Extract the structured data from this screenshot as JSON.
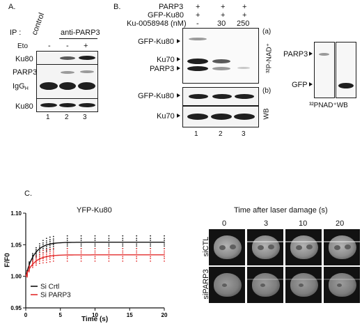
{
  "panelA": {
    "label": "A.",
    "ip_label": "IP :",
    "control_label": "control",
    "anti_label": "anti-PARP3",
    "eto_label": "Eto",
    "eto_signs": [
      "-",
      "-",
      "+"
    ],
    "bands": [
      "Ku80",
      "PARP3",
      "IgG",
      "H",
      "Ku80"
    ],
    "lanes": [
      "1",
      "2",
      "3"
    ]
  },
  "panelB": {
    "label": "B.",
    "rows": [
      {
        "name": "PARP3",
        "values": [
          "+",
          "+",
          "+"
        ]
      },
      {
        "name": "GFP-Ku80",
        "values": [
          "+",
          "+",
          "+"
        ]
      },
      {
        "name": "Ku-0058948 (nM)",
        "values": [
          "-",
          "30",
          "250"
        ]
      }
    ],
    "bands_a": [
      "GFP-Ku80",
      "Ku70",
      "PARP3"
    ],
    "bands_b": [
      "GFP-Ku80",
      "Ku70"
    ],
    "sub_a": "(a)",
    "sub_b": "(b)",
    "side_a": "³²P-NAD⁺",
    "side_b": "WB",
    "lanes": [
      "1",
      "2",
      "3"
    ],
    "right_bands": [
      "PARP3",
      "GFP"
    ],
    "right_caption": "³²PNAD⁺WB"
  },
  "panelC": {
    "label": "C.",
    "chart_data": {
      "type": "scatter",
      "title": "YFP-Ku80",
      "xlabel": "Time (s)",
      "ylabel": "F/F0",
      "xlim": [
        0,
        20
      ],
      "ylim": [
        0.95,
        1.1
      ],
      "xticks": [
        "0",
        "5",
        "10",
        "15",
        "20"
      ],
      "yticks": [
        "0.95",
        "1.00",
        "1.05",
        "1.10"
      ],
      "legend_position": "bottom-left",
      "series": [
        {
          "name": "Si Crtl",
          "color": "#111111",
          "plateau": 1.054,
          "x": [
            0.2,
            0.5,
            1.0,
            1.5,
            2.0,
            2.5,
            3.0,
            3.5,
            4.0,
            6.0,
            8.0,
            10.0,
            12.0,
            14.0,
            16.0,
            18.0,
            20.0
          ],
          "y": [
            1.005,
            1.018,
            1.03,
            1.038,
            1.043,
            1.047,
            1.05,
            1.052,
            1.053,
            1.054,
            1.054,
            1.054,
            1.054,
            1.054,
            1.054,
            1.054,
            1.054
          ]
        },
        {
          "name": "Si PARP3",
          "color": "#e32b2b",
          "plateau": 1.034,
          "x": [
            0.2,
            0.5,
            1.0,
            1.5,
            2.0,
            2.5,
            3.0,
            3.5,
            4.0,
            6.0,
            8.0,
            10.0,
            12.0,
            14.0,
            16.0,
            18.0,
            20.0
          ],
          "y": [
            1.003,
            1.012,
            1.02,
            1.025,
            1.029,
            1.031,
            1.032,
            1.033,
            1.034,
            1.034,
            1.034,
            1.034,
            1.034,
            1.034,
            1.034,
            1.034,
            1.034
          ]
        }
      ]
    },
    "micro": {
      "title": "Time after laser damage (s)",
      "times": [
        "0",
        "3",
        "10",
        "20"
      ],
      "rows": [
        "siCTL",
        "siPARP3"
      ]
    }
  }
}
